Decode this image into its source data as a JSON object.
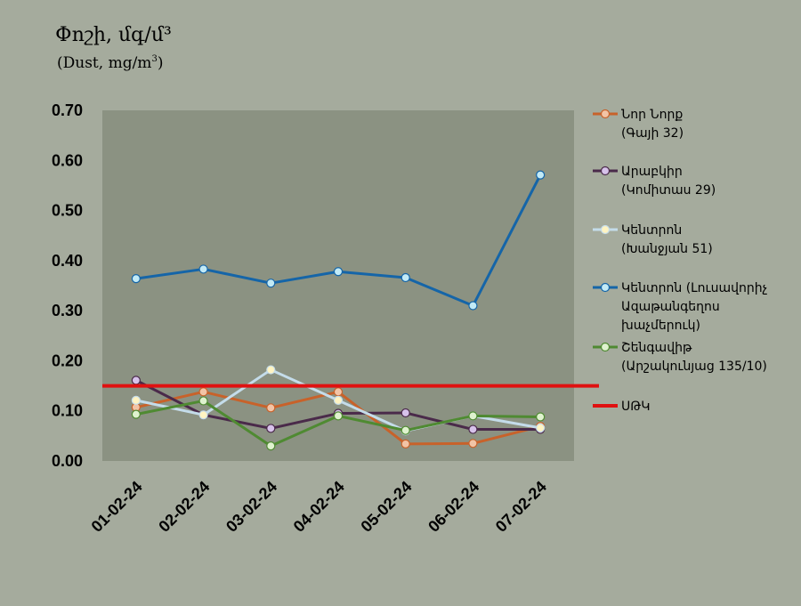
{
  "chart_data": {
    "type": "line",
    "title": "Փոշի, մգ/մ³",
    "subtitle_main": "(Dust, mg/m",
    "subtitle_sup": "3",
    "subtitle_close": ")",
    "categories": [
      "01-02-24",
      "02-02-24",
      "03-02-24",
      "04-02-24",
      "05-02-24",
      "06-02-24",
      "07-02-24"
    ],
    "y_ticks": [
      "0.00",
      "0.10",
      "0.20",
      "0.30",
      "0.40",
      "0.50",
      "0.60",
      "0.70"
    ],
    "ylim": [
      0,
      0.7
    ],
    "threshold": {
      "value": 0.15,
      "color": "#e01010"
    },
    "legend_placement": "right",
    "series": [
      {
        "name_lines": [
          "Նոր Նորք",
          "(Գայի 32)"
        ],
        "color": "#c8622a",
        "marker_fill": "#f2c4a6",
        "values": [
          0.107,
          0.138,
          0.106,
          0.138,
          0.034,
          0.035,
          0.069
        ]
      },
      {
        "name_lines": [
          "Արաբկիր",
          "(Կոմիտաս 29)"
        ],
        "color": "#4a2a4a",
        "marker_fill": "#d7c2ea",
        "values": [
          0.161,
          0.092,
          0.065,
          0.095,
          0.096,
          0.063,
          0.063
        ]
      },
      {
        "name_lines": [
          "Կենտրոն",
          "(Խանջյան 51)"
        ],
        "color": "#c4dcea",
        "marker_fill": "#fff4c2",
        "values": [
          0.121,
          0.092,
          0.182,
          0.121,
          0.06,
          0.09,
          0.066
        ]
      },
      {
        "name_lines": [
          "Կենտրոն (Լուսավորիչ",
          "Ազաթանգեղոս",
          "խաչմերուկ)"
        ],
        "color": "#1565a8",
        "marker_fill": "#c2eaf6",
        "values": [
          0.364,
          0.383,
          0.355,
          0.378,
          0.366,
          0.31,
          0.571
        ]
      },
      {
        "name_lines": [
          "Շենգավիթ",
          "(Արշակունյաց 135/10)"
        ],
        "color": "#4f8a32",
        "marker_fill": "#dff2cf",
        "values": [
          0.093,
          0.12,
          0.03,
          0.09,
          0.061,
          0.09,
          0.088
        ]
      }
    ],
    "threshold_label": "ՍԹԿ"
  }
}
